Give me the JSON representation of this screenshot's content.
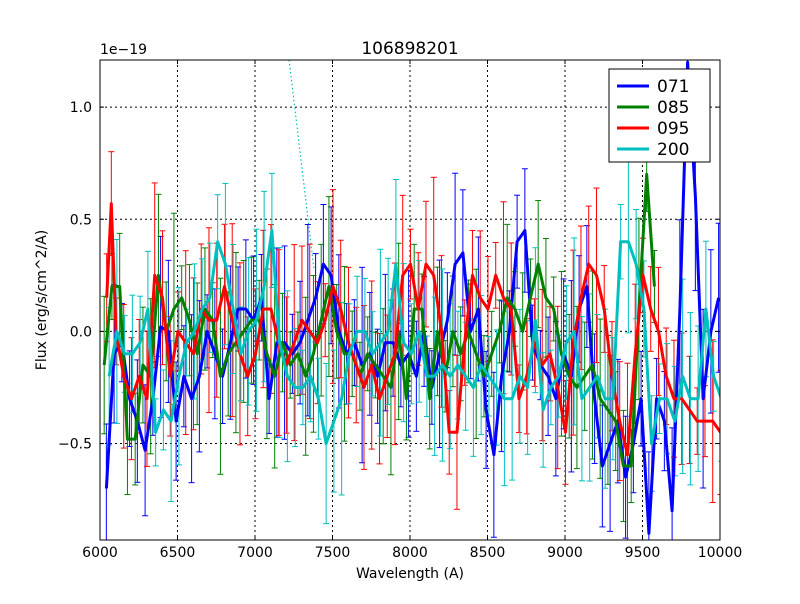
{
  "chart_data": {
    "type": "line",
    "title": "106898201",
    "xlabel": "Wavelength (A)",
    "ylabel": "Flux (erg/s/cm^2/A)",
    "offset_label": "1e−19",
    "xlim": [
      6000,
      10000
    ],
    "ylim": [
      -0.93,
      1.21
    ],
    "xticks": [
      6000,
      6500,
      7000,
      7500,
      8000,
      8500,
      9000,
      9500,
      10000
    ],
    "xtick_labels": [
      "6000",
      "6500",
      "7000",
      "7500",
      "8000",
      "8500",
      "9000",
      "9500",
      "10000"
    ],
    "yticks": [
      -0.5,
      0.0,
      0.5,
      1.0
    ],
    "ytick_labels": [
      "−0.5",
      "0.0",
      "0.5",
      "1.0"
    ],
    "grid": true,
    "legend_position": "top-right",
    "series": [
      {
        "name": "071",
        "color": "#0000ff",
        "x": [
          6050,
          6100,
          6150,
          6200,
          6250,
          6300,
          6350,
          6400,
          6450,
          6500,
          6550,
          6600,
          6650,
          6700,
          6750,
          6800,
          6850,
          6900,
          6950,
          7000,
          7050,
          7100,
          7150,
          7200,
          7250,
          7300,
          7350,
          7400,
          7450,
          7500,
          7550,
          7600,
          7650,
          7700,
          7750,
          7800,
          7850,
          7900,
          7950,
          8000,
          8050,
          8100,
          8150,
          8200,
          8250,
          8300,
          8350,
          8400,
          8450,
          8500,
          8550,
          8600,
          8650,
          8700,
          8750,
          8800,
          8850,
          8900,
          8950,
          9000,
          9050,
          9100,
          9150,
          9200,
          9250,
          9300,
          9350,
          9400,
          9450,
          9500,
          9550,
          9600,
          9650,
          9700,
          9750,
          9800,
          9850,
          9900,
          9950,
          10000
        ],
        "y": [
          -0.7,
          -0.1,
          -0.05,
          -0.3,
          -0.4,
          -0.53,
          -0.3,
          0.02,
          0.0,
          -0.4,
          -0.2,
          -0.3,
          -0.2,
          0.0,
          -0.1,
          -0.2,
          -0.05,
          0.1,
          0.1,
          0.05,
          0.15,
          -0.3,
          -0.05,
          -0.05,
          -0.1,
          -0.05,
          0.05,
          0.15,
          0.3,
          0.25,
          0.0,
          -0.1,
          -0.05,
          -0.15,
          -0.1,
          -0.2,
          -0.05,
          -0.05,
          -0.15,
          -0.1,
          -0.2,
          0.0,
          -0.25,
          -0.1,
          0.05,
          0.3,
          0.35,
          0.0,
          0.1,
          -0.35,
          -0.55,
          -0.2,
          0.0,
          0.4,
          0.45,
          -0.05,
          -0.15,
          -0.2,
          -0.3,
          -0.1,
          -0.2,
          0.1,
          0.2,
          -0.3,
          -0.6,
          -0.5,
          -0.4,
          -0.65,
          -0.5,
          -0.3,
          -0.9,
          -0.3,
          -0.4,
          -0.8,
          0.1,
          1.2,
          0.6,
          -0.3,
          0.0,
          0.15
        ]
      },
      {
        "name": "085",
        "color": "#008000",
        "x": [
          6030,
          6080,
          6130,
          6180,
          6230,
          6280,
          6330,
          6380,
          6430,
          6480,
          6530,
          6580,
          6630,
          6680,
          6730,
          6780,
          6830,
          6880,
          6930,
          6980,
          7030,
          7080,
          7130,
          7180,
          7230,
          7280,
          7330,
          7380,
          7430,
          7480,
          7530,
          7580,
          7630,
          7680,
          7730,
          7780,
          7830,
          7880,
          7930,
          7980,
          8030,
          8080,
          8130,
          8180,
          8230,
          8280,
          8330,
          8380,
          8430,
          8480,
          8530,
          8580,
          8630,
          8680,
          8730,
          8780,
          8830,
          8880,
          8930,
          8980,
          9030,
          9080,
          9130,
          9180,
          9230,
          9280,
          9330,
          9380,
          9430,
          9480,
          9530,
          9580
        ],
        "y": [
          -0.15,
          0.2,
          0.2,
          -0.48,
          -0.48,
          -0.15,
          -0.2,
          0.25,
          0.0,
          0.1,
          0.15,
          0.05,
          -0.1,
          0.1,
          0.05,
          -0.2,
          -0.1,
          -0.05,
          0.0,
          0.05,
          0.05,
          -0.1,
          -0.2,
          -0.05,
          -0.15,
          -0.1,
          -0.2,
          -0.1,
          0.05,
          0.2,
          0.0,
          -0.1,
          -0.1,
          -0.2,
          -0.1,
          -0.15,
          -0.2,
          -0.25,
          0.0,
          -0.3,
          0.1,
          0.1,
          -0.3,
          0.0,
          -0.2,
          0.0,
          -0.1,
          0.0,
          -0.1,
          -0.2,
          -0.1,
          0.0,
          0.15,
          0.1,
          0.0,
          0.15,
          0.3,
          0.15,
          0.1,
          -0.1,
          -0.2,
          -0.25,
          -0.2,
          -0.15,
          -0.3,
          -0.35,
          -0.4,
          -0.6,
          -0.6,
          0.1,
          0.7,
          0.2
        ]
      },
      {
        "name": "095",
        "color": "#ff0000",
        "x": [
          6040,
          6070,
          6100,
          6150,
          6200,
          6250,
          6300,
          6350,
          6400,
          6450,
          6500,
          6550,
          6600,
          6650,
          6700,
          6750,
          6800,
          6850,
          6900,
          6950,
          7000,
          7050,
          7100,
          7150,
          7200,
          7250,
          7300,
          7350,
          7400,
          7450,
          7500,
          7550,
          7600,
          7650,
          7700,
          7750,
          7800,
          7850,
          7900,
          7950,
          8000,
          8050,
          8100,
          8150,
          8200,
          8250,
          8300,
          8350,
          8400,
          8450,
          8500,
          8550,
          8600,
          8650,
          8700,
          8750,
          8800,
          8850,
          8900,
          8950,
          9000,
          9050,
          9100,
          9150,
          9200,
          9250,
          9300,
          9350,
          9400,
          9450,
          9500,
          9550,
          9600,
          9650,
          9700,
          9750,
          9800,
          9850,
          9900,
          9950,
          10000
        ],
        "y": [
          0.15,
          0.57,
          0.0,
          -0.2,
          -0.3,
          -0.2,
          -0.3,
          0.25,
          0.15,
          -0.2,
          0.0,
          -0.05,
          -0.1,
          0.1,
          0.05,
          0.05,
          0.2,
          0.05,
          -0.1,
          -0.2,
          -0.1,
          0.1,
          0.1,
          -0.05,
          -0.15,
          -0.05,
          0.05,
          0.0,
          -0.05,
          0.05,
          0.2,
          0.1,
          -0.05,
          -0.15,
          -0.25,
          -0.15,
          -0.3,
          -0.2,
          -0.1,
          0.25,
          0.3,
          0.1,
          0.3,
          0.25,
          0.0,
          -0.45,
          -0.45,
          -0.05,
          0.25,
          0.15,
          0.1,
          0.25,
          0.15,
          0.1,
          -0.3,
          -0.2,
          -0.05,
          -0.15,
          -0.1,
          -0.25,
          -0.45,
          -0.05,
          0.15,
          0.3,
          0.25,
          0.1,
          -0.2,
          -0.4,
          -0.55,
          -0.1,
          0.25,
          0.1,
          0.0,
          -0.2,
          -0.3,
          -0.3,
          -0.35,
          -0.4,
          -0.4,
          -0.4,
          -0.45
        ]
      },
      {
        "name": "200",
        "color": "#00bfbf",
        "x": [
          6050,
          6100,
          6150,
          6200,
          6250,
          6300,
          6350,
          6400,
          6450,
          6500,
          6550,
          6600,
          6650,
          6700,
          6750,
          6800,
          6850,
          6900,
          6950,
          7000,
          7050,
          7100,
          7150,
          7200,
          7250,
          7300,
          7350,
          7400,
          7450,
          7500,
          7550,
          7600,
          7650,
          7700,
          7750,
          7800,
          7850,
          7900,
          7950,
          8000,
          8050,
          8100,
          8150,
          8200,
          8250,
          8300,
          8350,
          8400,
          8450,
          8500,
          8550,
          8600,
          8650,
          8700,
          8750,
          8800,
          8850,
          8900,
          8950,
          9000,
          9050,
          9100,
          9150,
          9200,
          9250,
          9300,
          9350,
          9400,
          9450,
          9500,
          9550,
          9600,
          9650,
          9700,
          9750,
          9800,
          9850,
          9900,
          9950,
          10000
        ],
        "y": [
          -0.2,
          0.0,
          -0.1,
          -0.1,
          -0.05,
          0.1,
          -0.45,
          -0.35,
          -0.4,
          -0.2,
          -0.05,
          0.0,
          0.1,
          0.15,
          0.4,
          0.3,
          0.1,
          -0.1,
          0.0,
          0.05,
          0.2,
          0.45,
          -0.05,
          -0.2,
          -0.25,
          -0.25,
          -0.2,
          -0.3,
          -0.5,
          -0.4,
          -0.3,
          -0.1,
          0.0,
          0.0,
          -0.1,
          -0.05,
          0.0,
          0.3,
          -0.05,
          -0.1,
          0.0,
          -0.2,
          -0.2,
          -0.15,
          -0.2,
          -0.15,
          -0.2,
          -0.25,
          -0.15,
          -0.2,
          -0.25,
          -0.3,
          -0.3,
          -0.2,
          -0.25,
          0.05,
          -0.35,
          -0.25,
          -0.2,
          -0.05,
          0.0,
          -0.3,
          -0.25,
          -0.2,
          -0.3,
          -0.3,
          0.4,
          0.4,
          0.3,
          0.1,
          -0.5,
          -0.3,
          -0.3,
          -0.4,
          -0.2,
          -0.3,
          -0.3,
          0.1,
          -0.2,
          -0.3
        ]
      }
    ],
    "annotation": "dotted cyan connector from (7220, 1.21) to (7380, 0.28)"
  }
}
